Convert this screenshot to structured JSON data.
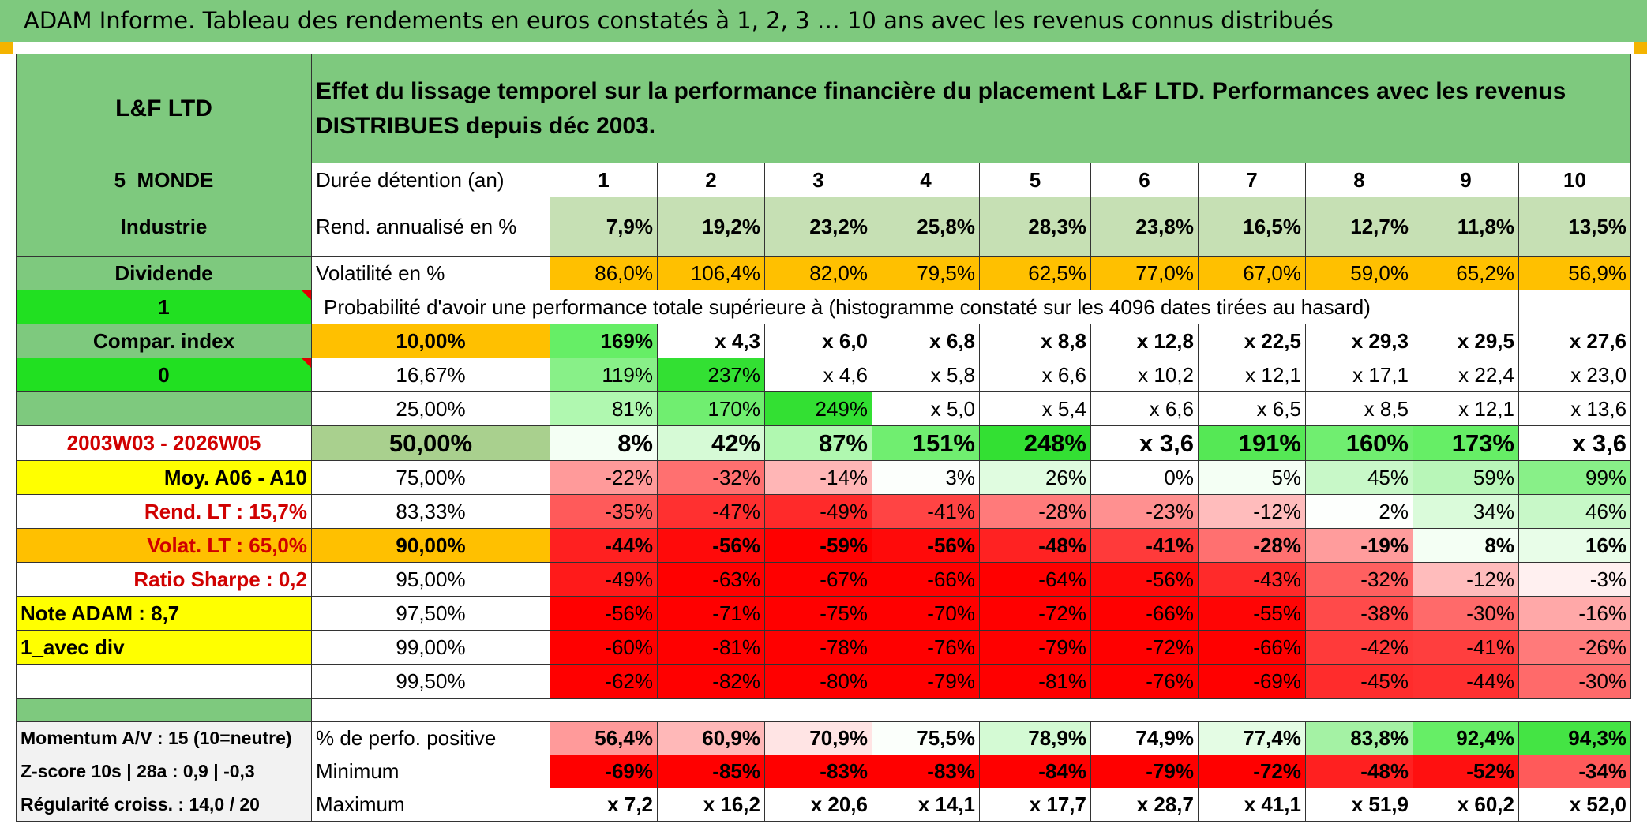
{
  "title": "ADAM Informe. Tableau des rendements en euros constatés à 1, 2, 3 … 10 ans avec les revenus connus distribués",
  "fund": "L&F LTD",
  "description": "Effet du lissage temporel sur la performance financière du placement L&F LTD. Performances avec les revenus DISTRIBUES depuis déc 2003.",
  "side": {
    "zone": "5_MONDE",
    "sector": "Industrie",
    "type": "Dividende",
    "value1": "1",
    "compar": "Compar. index",
    "value0": "0",
    "period": "2003W03 - 2026W05",
    "moy": "Moy. A06 - A10",
    "rend_lt": "Rend. LT :   15,7%",
    "volat_lt": "Volat. LT :   65,0%",
    "sharpe": "Ratio Sharpe :    0,2",
    "note": "Note ADAM : 8,7",
    "div": "1_avec div",
    "momentum": "Momentum A/V : 15 (10=neutre)",
    "zscore": "Z-score 10s | 28a : 0,9 | -0,3",
    "regularite": "Régularité croiss. : 14,0 / 20"
  },
  "labels": {
    "duree": "Durée détention (an)",
    "rend": "Rend. annualisé en %",
    "vol": "Volatilité en %",
    "proba": "Probabilité d'avoir une performance totale supérieure à (histogramme constaté sur les 4096 dates tirées au hasard)",
    "positive": "% de perfo. positive",
    "minimum": "Minimum",
    "maximum": "Maximum"
  },
  "years": [
    "1",
    "2",
    "3",
    "4",
    "5",
    "6",
    "7",
    "8",
    "9",
    "10"
  ],
  "rend": [
    "7,9%",
    "19,2%",
    "23,2%",
    "25,8%",
    "28,3%",
    "23,8%",
    "16,5%",
    "12,7%",
    "11,8%",
    "13,5%"
  ],
  "vol": [
    "86,0%",
    "106,4%",
    "82,0%",
    "79,5%",
    "62,5%",
    "77,0%",
    "67,0%",
    "59,0%",
    "65,2%",
    "56,9%"
  ],
  "vol_colors": [
    "#ffc000",
    "#ffc000",
    "#ffc000",
    "#ffc000",
    "#ffc000",
    "#ffc000",
    "#ffc000",
    "#ffc000",
    "#ffc000",
    "#ffc000"
  ],
  "prob_rows": [
    {
      "pct": "10,00%",
      "bold": true,
      "pct_bg": "#ffc000",
      "vals": [
        "169%",
        "x 4,3",
        "x 6,0",
        "x 6,8",
        "x 8,8",
        "x 12,8",
        "x 22,5",
        "x 29,3",
        "x 29,5",
        "x 27,6"
      ],
      "colors": [
        "#66ee66",
        "#ffffff",
        "#ffffff",
        "#ffffff",
        "#ffffff",
        "#ffffff",
        "#ffffff",
        "#ffffff",
        "#ffffff",
        "#ffffff"
      ]
    },
    {
      "pct": "16,67%",
      "bold": false,
      "pct_bg": "#ffffff",
      "vals": [
        "119%",
        "237%",
        "x 4,6",
        "x 5,8",
        "x 6,6",
        "x 10,2",
        "x 12,1",
        "x 17,1",
        "x 22,4",
        "x 23,0"
      ],
      "colors": [
        "#88f088",
        "#33e033",
        "#ffffff",
        "#ffffff",
        "#ffffff",
        "#ffffff",
        "#ffffff",
        "#ffffff",
        "#ffffff",
        "#ffffff"
      ]
    },
    {
      "pct": "25,00%",
      "bold": false,
      "pct_bg": "#ffffff",
      "vals": [
        "81%",
        "170%",
        "249%",
        "x 5,0",
        "x 5,4",
        "x 6,6",
        "x 6,5",
        "x 8,5",
        "x 12,1",
        "x 13,6"
      ],
      "colors": [
        "#b0f8b0",
        "#70ee70",
        "#33e033",
        "#ffffff",
        "#ffffff",
        "#ffffff",
        "#ffffff",
        "#ffffff",
        "#ffffff",
        "#ffffff"
      ]
    },
    {
      "pct": "50,00%",
      "bold": true,
      "big": true,
      "pct_bg": "#a9d08e",
      "vals": [
        "8%",
        "42%",
        "87%",
        "151%",
        "248%",
        "x 3,6",
        "191%",
        "160%",
        "173%",
        "x 3,6"
      ],
      "colors": [
        "#f4fff4",
        "#d6fad6",
        "#b0f8b0",
        "#70ee70",
        "#33e033",
        "#ffffff",
        "#55e855",
        "#70ee70",
        "#66ee66",
        "#ffffff"
      ]
    },
    {
      "pct": "75,00%",
      "bold": false,
      "pct_bg": "#ffffff",
      "vals": [
        "-22%",
        "-32%",
        "-14%",
        "3%",
        "26%",
        "0%",
        "5%",
        "45%",
        "59%",
        "99%"
      ],
      "colors": [
        "#ff9a9a",
        "#ff7070",
        "#ffb6b6",
        "#fcfffc",
        "#e0fce0",
        "#ffffff",
        "#f4fff4",
        "#c8f8c8",
        "#b8f6b8",
        "#88f088"
      ]
    },
    {
      "pct": "83,33%",
      "bold": false,
      "pct_bg": "#ffffff",
      "vals": [
        "-35%",
        "-47%",
        "-49%",
        "-41%",
        "-28%",
        "-23%",
        "-12%",
        "2%",
        "34%",
        "46%"
      ],
      "colors": [
        "#ff5a5a",
        "#ff3030",
        "#ff2a2a",
        "#ff4444",
        "#ff7a7a",
        "#ff9090",
        "#ffbcbc",
        "#fdfffd",
        "#dafbda",
        "#c8f8c8"
      ]
    },
    {
      "pct": "90,00%",
      "bold": true,
      "pct_bg": "#ffc000",
      "vals": [
        "-44%",
        "-56%",
        "-59%",
        "-56%",
        "-48%",
        "-41%",
        "-28%",
        "-19%",
        "8%",
        "16%"
      ],
      "colors": [
        "#ff2020",
        "#ff0a0a",
        "#ff0000",
        "#ff0a0a",
        "#ff2222",
        "#ff3a3a",
        "#ff7070",
        "#ff9c9c",
        "#f4fff4",
        "#e8fde8"
      ]
    },
    {
      "pct": "95,00%",
      "bold": false,
      "pct_bg": "#ffffff",
      "vals": [
        "-49%",
        "-63%",
        "-67%",
        "-66%",
        "-64%",
        "-56%",
        "-43%",
        "-32%",
        "-12%",
        "-3%"
      ],
      "colors": [
        "#ff1a1a",
        "#ff0000",
        "#ff0000",
        "#ff0000",
        "#ff0000",
        "#ff0a0a",
        "#ff2a2a",
        "#ff6060",
        "#ffbcbc",
        "#fff0f0"
      ]
    },
    {
      "pct": "97,50%",
      "bold": false,
      "pct_bg": "#ffffff",
      "vals": [
        "-56%",
        "-71%",
        "-75%",
        "-70%",
        "-72%",
        "-66%",
        "-55%",
        "-38%",
        "-30%",
        "-16%"
      ],
      "colors": [
        "#ff0000",
        "#ff0000",
        "#ff0000",
        "#ff0000",
        "#ff0000",
        "#ff0000",
        "#ff0505",
        "#ff4a4a",
        "#ff6a6a",
        "#ffa8a8"
      ]
    },
    {
      "pct": "99,00%",
      "bold": false,
      "pct_bg": "#ffffff",
      "vals": [
        "-60%",
        "-81%",
        "-78%",
        "-76%",
        "-79%",
        "-72%",
        "-66%",
        "-42%",
        "-41%",
        "-26%"
      ],
      "colors": [
        "#ff0000",
        "#ff0000",
        "#ff0000",
        "#ff0000",
        "#ff0000",
        "#ff0000",
        "#ff0000",
        "#ff3a3a",
        "#ff3e3e",
        "#ff7a7a"
      ]
    },
    {
      "pct": "99,50%",
      "bold": false,
      "pct_bg": "#ffffff",
      "vals": [
        "-62%",
        "-82%",
        "-80%",
        "-79%",
        "-81%",
        "-76%",
        "-69%",
        "-45%",
        "-44%",
        "-30%"
      ],
      "colors": [
        "#ff0000",
        "#ff0000",
        "#ff0000",
        "#ff0000",
        "#ff0000",
        "#ff0000",
        "#ff0000",
        "#ff2c2c",
        "#ff3030",
        "#ff6a6a"
      ]
    }
  ],
  "positive": [
    "56,4%",
    "60,9%",
    "70,9%",
    "75,5%",
    "78,9%",
    "74,9%",
    "77,4%",
    "83,8%",
    "92,4%",
    "94,3%"
  ],
  "positive_colors": [
    "#ff9a9a",
    "#ffb8b8",
    "#ffe4e4",
    "#fbfffb",
    "#d4fad4",
    "#ffffff",
    "#e4fce4",
    "#a4f2a4",
    "#66ee66",
    "#44e444"
  ],
  "minimum": [
    "-69%",
    "-85%",
    "-83%",
    "-83%",
    "-84%",
    "-79%",
    "-72%",
    "-48%",
    "-52%",
    "-34%"
  ],
  "minimum_colors": [
    "#ff0000",
    "#ff0000",
    "#ff0000",
    "#ff0000",
    "#ff0000",
    "#ff0000",
    "#ff0000",
    "#ff2020",
    "#ff1010",
    "#ff5a5a"
  ],
  "maximum": [
    "x 7,2",
    "x 16,2",
    "x 20,6",
    "x 14,1",
    "x 17,7",
    "x 28,7",
    "x 41,1",
    "x 51,9",
    "x 60,2",
    "x 52,0"
  ]
}
